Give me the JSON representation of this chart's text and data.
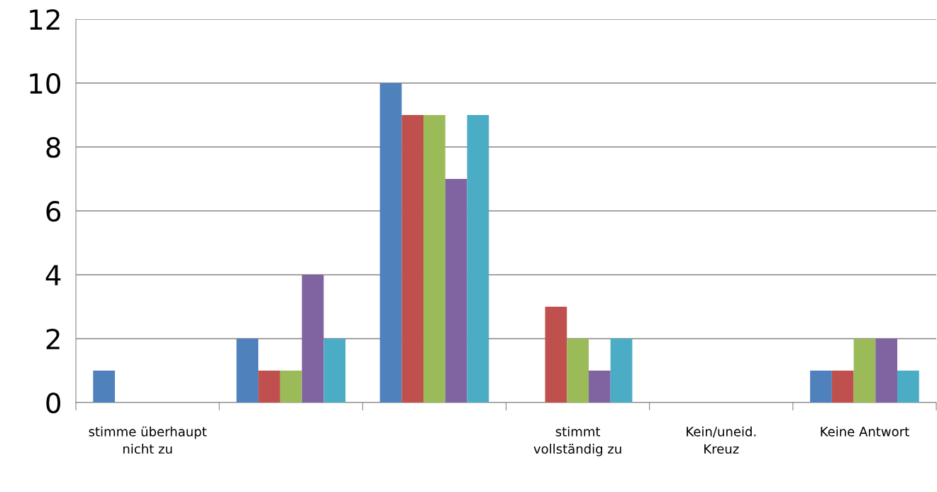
{
  "chart_data": {
    "type": "bar",
    "categories": [
      "stimme überhaupt nicht zu",
      null,
      null,
      "stimmt vollständig zu",
      "Kein/uneid. Kreuz",
      "Keine Antwort"
    ],
    "series": [
      {
        "color": "#4f81bd",
        "values": [
          1,
          2,
          10,
          0,
          0,
          1
        ]
      },
      {
        "color": "#c0504d",
        "values": [
          0,
          1,
          9,
          3,
          0,
          1
        ]
      },
      {
        "color": "#9bbb59",
        "values": [
          0,
          1,
          9,
          2,
          0,
          2
        ]
      },
      {
        "color": "#8064a2",
        "values": [
          0,
          4,
          7,
          1,
          0,
          2
        ]
      },
      {
        "color": "#4bacc6",
        "values": [
          0,
          2,
          9,
          2,
          0,
          1
        ]
      }
    ],
    "ylim": [
      0,
      12
    ],
    "yticks": [
      0,
      2,
      4,
      6,
      8,
      10,
      12
    ],
    "grid": "y",
    "legend": false
  }
}
